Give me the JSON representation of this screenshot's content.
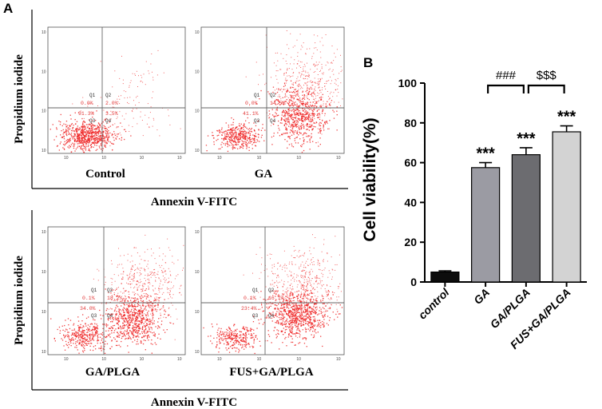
{
  "panel_a": {
    "letter": "A",
    "y_axis_label": "Propidium iodide",
    "x_axis_label": "Annexin V-FITC",
    "quadrant_labels": [
      "Q1",
      "Q2",
      "Q3",
      "Q4"
    ],
    "plots": [
      {
        "name": "Control",
        "q1": "0.0%",
        "q2": "2.0%",
        "q3": "91.3%",
        "q4": "3.5%"
      },
      {
        "name": "GA",
        "q1": "0.0%",
        "q2": "14.5%",
        "q3": "41.1%",
        "q4": ""
      },
      {
        "name": "GA/PLGA",
        "q1": "0.1%",
        "q2": "18.2%",
        "q3": "34.0%",
        "q4": ""
      },
      {
        "name": "FUS+GA/PLGA",
        "q1": "0.1%",
        "q2": "16.1%",
        "q3": "23.4%",
        "q4": ""
      }
    ]
  },
  "chart_data": {
    "panel": "B",
    "type": "bar",
    "title": "",
    "xlabel": "",
    "ylabel": "Cell viability(%)",
    "ylim": [
      0,
      100
    ],
    "yticks": [
      0,
      20,
      40,
      60,
      80,
      100
    ],
    "categories": [
      "control",
      "GA",
      "GA/PLGA",
      "FUS+GA/PLGA"
    ],
    "values": [
      5,
      57.5,
      64,
      75.5
    ],
    "errors": [
      0.6,
      2.5,
      3.5,
      3.0
    ],
    "bar_colors": [
      "#0d0d0d",
      "#9b9ba3",
      "#6c6c70",
      "#d3d3d3"
    ],
    "significance": [
      "",
      "***",
      "***",
      "***"
    ],
    "comparisons": [
      {
        "from": 1,
        "to": 2,
        "label": "###"
      },
      {
        "from": 2,
        "to": 3,
        "label": "$$$"
      }
    ]
  }
}
